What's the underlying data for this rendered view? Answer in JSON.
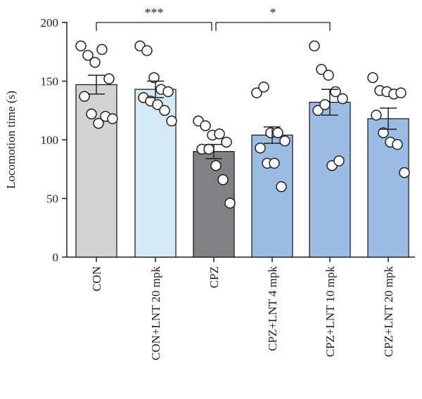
{
  "chart_data": {
    "type": "bar",
    "ylabel": "Locomotion time (s)",
    "ylim": [
      0,
      200
    ],
    "yticks": [
      0,
      50,
      100,
      150,
      200
    ],
    "categories": [
      "CON",
      "CON+LNT 20 mpk",
      "CPZ",
      "CPZ+LNT 4 mpk",
      "CPZ+LNT 10 mpk",
      "CPZ+LNT 20 mpk"
    ],
    "colors": [
      "#d2d3d5",
      "#d3ebf6",
      "#808285",
      "#9bbde3",
      "#9bbde3",
      "#9bbde3"
    ],
    "means": [
      147,
      143,
      90,
      104,
      132,
      118
    ],
    "sem": [
      8,
      7,
      6,
      7,
      11,
      9
    ],
    "points": [
      [
        180,
        172,
        166,
        177,
        152,
        137,
        122,
        114,
        120,
        118
      ],
      [
        180,
        176,
        153,
        143,
        141,
        136,
        133,
        130,
        125,
        116
      ],
      [
        116,
        112,
        104,
        105,
        98,
        92,
        92,
        78,
        66,
        46
      ],
      [
        140,
        145,
        106,
        106,
        99,
        93,
        80,
        80,
        60
      ],
      [
        180,
        160,
        155,
        141,
        135,
        125,
        130,
        78,
        82
      ],
      [
        153,
        142,
        141,
        139,
        140,
        121,
        106,
        98,
        96,
        72
      ]
    ],
    "significance": [
      {
        "from": 0,
        "to": 2,
        "label": "***"
      },
      {
        "from": 2,
        "to": 4,
        "label": "*"
      }
    ]
  }
}
